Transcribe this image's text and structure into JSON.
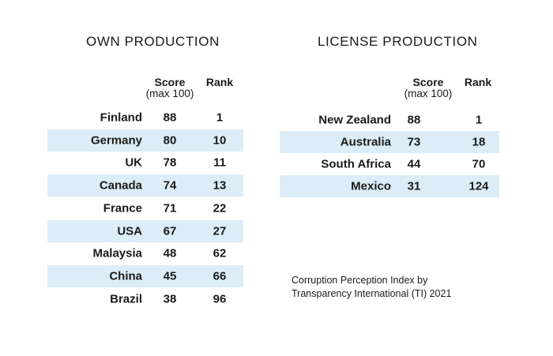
{
  "own": {
    "title": "OWN PRODUCTION",
    "score_header": [
      "Score",
      "(max 100)"
    ],
    "rank_header": "Rank",
    "rows": [
      {
        "country": "Finland",
        "score": "88",
        "rank": "1"
      },
      {
        "country": "Germany",
        "score": "80",
        "rank": "10"
      },
      {
        "country": "UK",
        "score": "78",
        "rank": "11"
      },
      {
        "country": "Canada",
        "score": "74",
        "rank": "13"
      },
      {
        "country": "France",
        "score": "71",
        "rank": "22"
      },
      {
        "country": "USA",
        "score": "67",
        "rank": "27"
      },
      {
        "country": "Malaysia",
        "score": "48",
        "rank": "62"
      },
      {
        "country": "China",
        "score": "45",
        "rank": "66"
      },
      {
        "country": "Brazil",
        "score": "38",
        "rank": "96"
      }
    ]
  },
  "license": {
    "title": "LICENSE PRODUCTION",
    "score_header": [
      "Score",
      "(max 100)"
    ],
    "rank_header": "Rank",
    "rows": [
      {
        "country": "New Zealand",
        "score": "88",
        "rank": "1"
      },
      {
        "country": "Australia",
        "score": "73",
        "rank": "18"
      },
      {
        "country": "South Africa",
        "score": "44",
        "rank": "70"
      },
      {
        "country": "Mexico",
        "score": "31",
        "rank": "124"
      }
    ]
  },
  "note": {
    "line1": "Corruption Perception Index by",
    "line2": "Transparency International (TI) 2021"
  },
  "colors": {
    "row_shade": "#dcedf8",
    "text": "#1a1a1a"
  }
}
